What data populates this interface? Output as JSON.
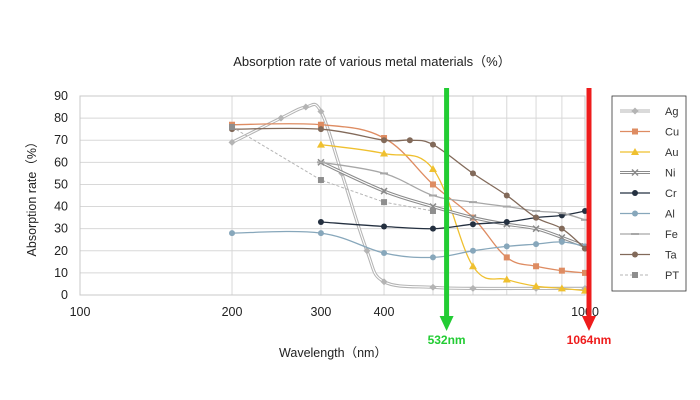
{
  "chart_data": {
    "type": "line",
    "title": "Absorption rate of various metal materials（%）",
    "xlabel": "Wavelength（nm）",
    "ylabel": "Absorption rate（%）",
    "xscale": "log",
    "xlim": [
      100,
      1000
    ],
    "ylim": [
      0,
      90
    ],
    "x_ticks": [
      100,
      200,
      300,
      400,
      1000
    ],
    "x_tick_labels": [
      "100",
      "200",
      "300",
      "400",
      "1000"
    ],
    "y_ticks": [
      0,
      10,
      20,
      30,
      40,
      50,
      60,
      70,
      80,
      90
    ],
    "y_tick_labels": [
      "0",
      "10",
      "20",
      "30",
      "40",
      "50",
      "60",
      "70",
      "80",
      "90"
    ],
    "grid": true,
    "legend_position": "right",
    "series": [
      {
        "name": "Ag",
        "color": "#b4b4b4",
        "marker": "diamond",
        "style": "double",
        "x": [
          200,
          250,
          280,
          300,
          330,
          370,
          400,
          500,
          600,
          800,
          1000
        ],
        "y": [
          69,
          80,
          85,
          83,
          55,
          20,
          6,
          3.5,
          3,
          3,
          3
        ]
      },
      {
        "name": "Cu",
        "color": "#de8c62",
        "marker": "square",
        "style": "solid",
        "x": [
          200,
          300,
          400,
          500,
          600,
          700,
          800,
          900,
          1000
        ],
        "y": [
          77,
          77,
          71,
          50,
          35,
          17,
          13,
          11,
          10
        ]
      },
      {
        "name": "Au",
        "color": "#efc02f",
        "marker": "triangle",
        "style": "solid",
        "x": [
          300,
          400,
          500,
          600,
          700,
          800,
          900,
          1000
        ],
        "y": [
          68,
          64,
          57,
          13,
          7,
          4,
          3,
          2
        ]
      },
      {
        "name": "Ni",
        "color": "#8b8b8b",
        "marker": "x",
        "style": "double",
        "x": [
          300,
          400,
          500,
          600,
          700,
          800,
          900,
          1000
        ],
        "y": [
          60,
          47,
          40,
          35,
          32,
          30,
          26,
          22
        ]
      },
      {
        "name": "Cr",
        "color": "#243040",
        "marker": "circle",
        "style": "solid",
        "x": [
          300,
          400,
          500,
          600,
          700,
          800,
          900,
          1000
        ],
        "y": [
          33,
          31,
          30,
          32,
          33,
          35,
          36,
          38
        ]
      },
      {
        "name": "Al",
        "color": "#87a7bb",
        "marker": "circle",
        "style": "solid",
        "x": [
          200,
          300,
          400,
          500,
          600,
          700,
          800,
          900,
          1000
        ],
        "y": [
          28,
          28,
          19,
          17,
          20,
          22,
          23,
          24,
          22
        ]
      },
      {
        "name": "Fe",
        "color": "#a7a7a7",
        "marker": "dash",
        "style": "solid",
        "x": [
          300,
          400,
          500,
          600,
          700,
          800,
          900,
          1000
        ],
        "y": [
          60,
          55,
          45,
          42,
          40,
          38,
          37,
          34
        ]
      },
      {
        "name": "Ta",
        "color": "#826a5a",
        "marker": "circle",
        "style": "solid",
        "x": [
          200,
          300,
          400,
          450,
          500,
          600,
          700,
          800,
          900,
          1000
        ],
        "y": [
          75,
          75,
          70,
          70,
          68,
          55,
          45,
          35,
          30,
          21
        ]
      },
      {
        "name": "PT",
        "color": "#8e8e8e",
        "marker": "square",
        "style": "dotted",
        "x": [
          200,
          300,
          400,
          500
        ],
        "y": [
          76,
          52,
          42,
          38
        ]
      }
    ],
    "annotations": [
      {
        "label": "532nm",
        "x": 532,
        "color": "#22cc33"
      },
      {
        "label": "1064nm",
        "x": 1064,
        "color": "#ee1c1c"
      }
    ]
  }
}
